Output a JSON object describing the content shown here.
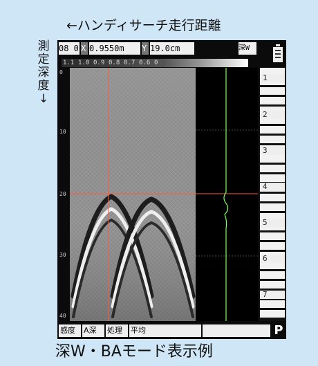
{
  "captions": {
    "top": "←ハンディサーチ走行距離",
    "side": "測\n定\n深\n度\n↓",
    "bottom": "深W・BAモード表示例"
  },
  "header": {
    "channel": "08 0",
    "x_label": "X",
    "x_value": "0.9550m",
    "y_label": "Y",
    "y_value": "19.0cm",
    "mode_button": "深W"
  },
  "scale_ticks": [
    "1.1",
    "1.0",
    "0.9",
    "0.8",
    "0.7",
    "0.6",
    "0"
  ],
  "depth_ticks": [
    "0",
    "10",
    "20",
    "30",
    "40"
  ],
  "side_labels": [
    "1",
    "2",
    "3",
    "4",
    "5",
    "6",
    "7"
  ],
  "status": {
    "sensitivity": "感度",
    "depth_mode": "A深",
    "processing_label": "処理",
    "processing_value": "平均",
    "p_button": "P"
  },
  "colors": {
    "cursor": "#ff5a3c",
    "trace": "#7cff5a",
    "grid": "#2f7a2f"
  }
}
